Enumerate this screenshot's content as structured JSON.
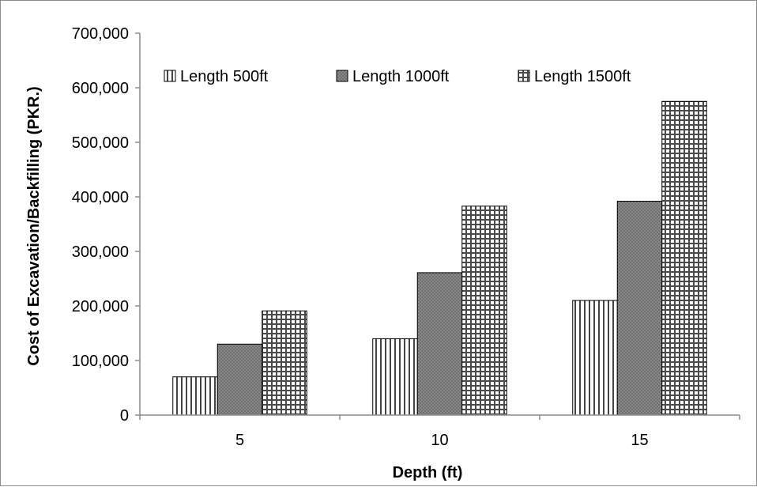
{
  "chart_data": {
    "type": "bar",
    "categories": [
      "5",
      "10",
      "15"
    ],
    "series": [
      {
        "name": "Length 500ft",
        "values": [
          70000,
          140000,
          210000
        ],
        "pattern": "vertical-stripes"
      },
      {
        "name": "Length 1000ft",
        "values": [
          130000,
          261000,
          392000
        ],
        "pattern": "dark-stipple"
      },
      {
        "name": "Length 1500ft",
        "values": [
          191000,
          383000,
          575000
        ],
        "pattern": "grid"
      }
    ],
    "xlabel": "Depth (ft)",
    "ylabel": "Cost of Excavation/Backfilling (PKR.)",
    "ylim": [
      0,
      700000
    ],
    "yticks": [
      "0",
      "100,000",
      "200,000",
      "300,000",
      "400,000",
      "500,000",
      "600,000",
      "700,000"
    ],
    "grid": false,
    "legend_position": "top"
  }
}
